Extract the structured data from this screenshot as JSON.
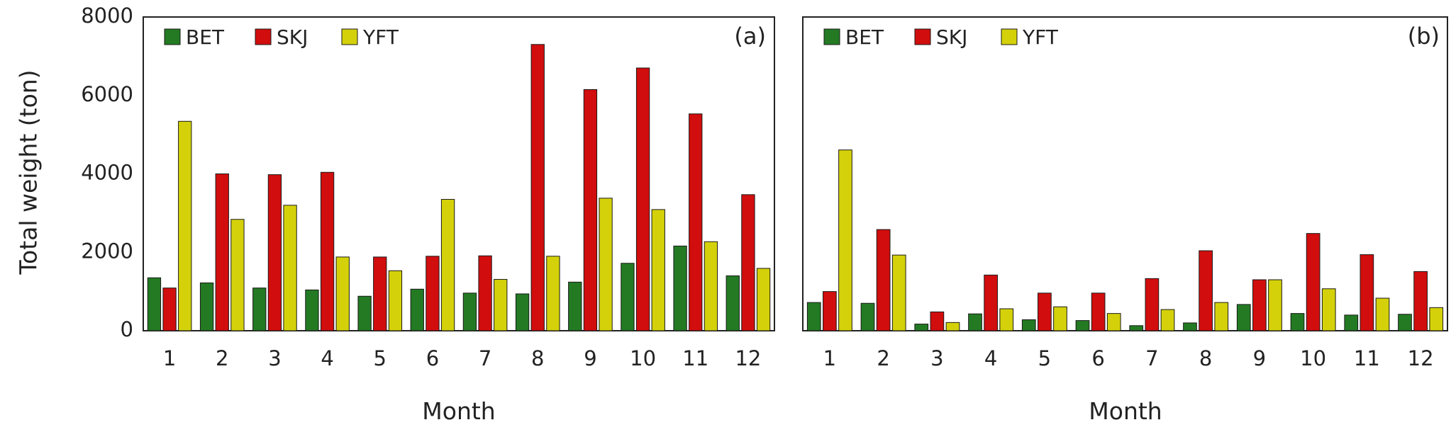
{
  "figure": {
    "ylabel": "Total weight (ton)"
  },
  "colors": {
    "BET": "#237a23",
    "SKJ": "#d10d0d",
    "YFT": "#d4d10a"
  },
  "chart_data": [
    {
      "type": "bar",
      "panel_label": "(a)",
      "xlabel": "Month",
      "ylabel": "Total weight (ton)",
      "ylim": [
        0,
        8000
      ],
      "yticks": [
        0,
        2000,
        4000,
        6000,
        8000
      ],
      "categories": [
        "1",
        "2",
        "3",
        "4",
        "5",
        "6",
        "7",
        "8",
        "9",
        "10",
        "11",
        "12"
      ],
      "legend_position": "top-left",
      "series": [
        {
          "name": "BET",
          "values": [
            1350,
            1220,
            1090,
            1040,
            880,
            1060,
            960,
            940,
            1240,
            1720,
            2160,
            1400
          ]
        },
        {
          "name": "SKJ",
          "values": [
            1090,
            4000,
            3980,
            4040,
            1880,
            1900,
            1910,
            7300,
            6150,
            6700,
            5530,
            3470
          ]
        },
        {
          "name": "YFT",
          "values": [
            5340,
            2840,
            3200,
            1880,
            1530,
            3350,
            1310,
            1900,
            3380,
            3090,
            2270,
            1590
          ]
        }
      ]
    },
    {
      "type": "bar",
      "panel_label": "(b)",
      "xlabel": "Month",
      "ylim": [
        0,
        8000
      ],
      "categories": [
        "1",
        "2",
        "3",
        "4",
        "5",
        "6",
        "7",
        "8",
        "9",
        "10",
        "11",
        "12"
      ],
      "legend_position": "top-left",
      "series": [
        {
          "name": "BET",
          "values": [
            720,
            700,
            170,
            430,
            280,
            260,
            130,
            200,
            670,
            440,
            400,
            420
          ]
        },
        {
          "name": "SKJ",
          "values": [
            1000,
            2580,
            480,
            1420,
            960,
            960,
            1330,
            2040,
            1300,
            2480,
            1940,
            1510
          ]
        },
        {
          "name": "YFT",
          "values": [
            4610,
            1930,
            210,
            560,
            610,
            440,
            540,
            720,
            1300,
            1070,
            830,
            590
          ]
        }
      ]
    }
  ]
}
